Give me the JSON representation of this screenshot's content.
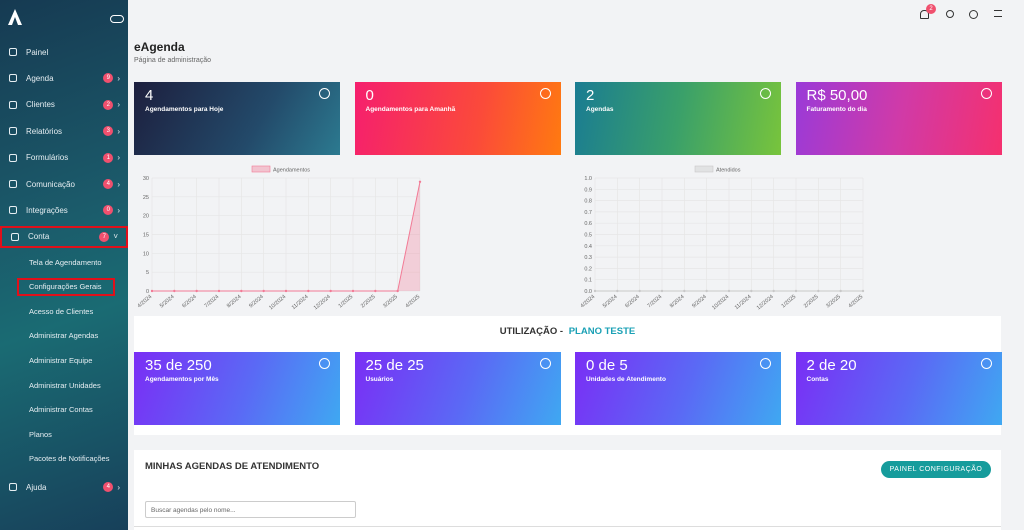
{
  "sidebar": {
    "menu": [
      {
        "label": "Painel"
      },
      {
        "label": "Agenda",
        "badge": "9"
      },
      {
        "label": "Clientes",
        "badge": "2"
      },
      {
        "label": "Relatórios",
        "badge": "3"
      },
      {
        "label": "Formulários",
        "badge": "1"
      },
      {
        "label": "Comunicação",
        "badge": "4"
      },
      {
        "label": "Integrações",
        "badge": "0"
      },
      {
        "label": "Conta",
        "badge": "7",
        "highlighted": true
      }
    ],
    "submenu": [
      {
        "label": "Tela de Agendamento"
      },
      {
        "label": "Configurações Gerais",
        "highlighted": true
      },
      {
        "label": "Acesso de Clientes"
      },
      {
        "label": "Administrar Agendas"
      },
      {
        "label": "Administrar Equipe"
      },
      {
        "label": "Administrar Unidades"
      },
      {
        "label": "Administrar Contas"
      },
      {
        "label": "Planos"
      },
      {
        "label": "Pacotes de Notificações"
      }
    ],
    "footer": {
      "label": "Ajuda",
      "badge": "4"
    }
  },
  "topbar": {
    "notifications": "2"
  },
  "header": {
    "title": "eAgenda",
    "subtitle": "Página de administração"
  },
  "stats": [
    {
      "value": "4",
      "label": "Agendamentos para Hoje"
    },
    {
      "value": "0",
      "label": "Agendamentos para Amanhã"
    },
    {
      "value": "2",
      "label": "Agendas"
    },
    {
      "value": "R$ 50,00",
      "label": "Faturamento do dia"
    }
  ],
  "chart_data": [
    {
      "type": "line",
      "categories": [
        "4/2024",
        "5/2024",
        "6/2024",
        "7/2024",
        "8/2024",
        "9/2024",
        "10/2024",
        "11/2024",
        "12/2024",
        "1/2025",
        "2/2025",
        "3/2025",
        "4/2025"
      ],
      "series": [
        {
          "name": "Agendamentos",
          "color": "#f27a95",
          "values": [
            0,
            0,
            0,
            0,
            0,
            0,
            0,
            0,
            0,
            0,
            0,
            0,
            29
          ]
        }
      ],
      "ylim": [
        0,
        30
      ],
      "yticks": [
        0,
        5,
        10,
        15,
        20,
        25,
        30
      ],
      "grid": true,
      "legend": "top"
    },
    {
      "type": "line",
      "categories": [
        "4/2024",
        "5/2024",
        "6/2024",
        "7/2024",
        "8/2024",
        "9/2024",
        "10/2024",
        "11/2024",
        "12/2024",
        "1/2025",
        "2/2025",
        "3/2025",
        "4/2025"
      ],
      "series": [
        {
          "name": "Atendidos",
          "color": "#c8c8c8",
          "values": [
            0,
            0,
            0,
            0,
            0,
            0,
            0,
            0,
            0,
            0,
            0,
            0,
            0
          ]
        }
      ],
      "ylim": [
        0,
        1
      ],
      "yticks": [
        {
          "value": 0,
          "label": "0.0"
        },
        0.1,
        0.2,
        0.3,
        0.4,
        0.5,
        0.6,
        0.7,
        0.8,
        0.9,
        {
          "value": 1,
          "label": "1.0"
        }
      ],
      "grid": true,
      "legend": "top"
    }
  ],
  "usage": {
    "title": "UTILIZAÇÃO -",
    "plan": "PLANO TESTE",
    "cards": [
      {
        "value": "35 de 250",
        "label": "Agendamentos por Mês"
      },
      {
        "value": "25 de 25",
        "label": "Usuários"
      },
      {
        "value": "0 de 5",
        "label": "Unidades de Atendimento"
      },
      {
        "value": "2 de 20",
        "label": "Contas"
      }
    ]
  },
  "agendas": {
    "title": "MINHAS AGENDAS DE ATENDIMENTO",
    "button": "PAINEL CONFIGURAÇÃO",
    "search_placeholder": "Buscar agendas pelo nome..."
  }
}
